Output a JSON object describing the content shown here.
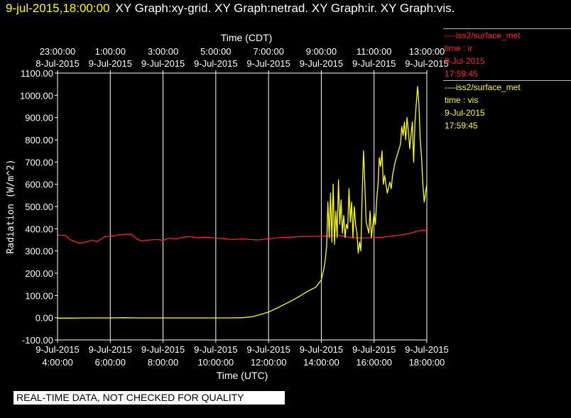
{
  "header": {
    "timestamp": "9-jul-2015,18:00:00",
    "graphs": "XY Graph:xy-grid.  XY Graph:netrad.  XY Graph:ir.  XY Graph:vis."
  },
  "legend": [
    {
      "dash": "----",
      "name": "iss2/surface_met",
      "var": "time : ir",
      "date": "9-Jul-2015",
      "time": "17:59:45",
      "color": "#ff2020"
    },
    {
      "dash": "----",
      "name": "iss2/surface_met",
      "var": "time : vis",
      "date": "9-Jul-2015",
      "time": "17:59:45",
      "color": "#ffff00"
    }
  ],
  "banner": "REAL-TIME DATA, NOT CHECKED FOR QUALITY",
  "colors": {
    "background": "#000000",
    "axis": "#ffffff",
    "grid": "#ffffff",
    "ir": "#ff2020",
    "vis": "#ffff00"
  },
  "chart_data": {
    "type": "line",
    "ylabel": "Radiation (W/m^2)",
    "xlabel": "Time (UTC)",
    "x2label": "Time (CDT)",
    "ylim": [
      -100,
      1100
    ],
    "yticks": [
      "-100.00",
      "0.00",
      "100.00",
      "200.00",
      "300.00",
      "400.00",
      "500.00",
      "600.00",
      "700.00",
      "800.00",
      "900.00",
      "1000.00",
      "1100.00"
    ],
    "xlim_hours_utc": [
      4,
      18
    ],
    "xticks": [
      {
        "h": 4,
        "date": "9-Jul-2015",
        "time": "4:00:00"
      },
      {
        "h": 6,
        "date": "9-Jul-2015",
        "time": "6:00:00"
      },
      {
        "h": 8,
        "date": "9-Jul-2015",
        "time": "8:00:00"
      },
      {
        "h": 10,
        "date": "9-Jul-2015",
        "time": "10:00:00"
      },
      {
        "h": 12,
        "date": "9-Jul-2015",
        "time": "12:00:00"
      },
      {
        "h": 14,
        "date": "9-Jul-2015",
        "time": "14:00:00"
      },
      {
        "h": 16,
        "date": "9-Jul-2015",
        "time": "16:00:00"
      },
      {
        "h": 18,
        "date": "9-Jul-2015",
        "time": "18:00:00"
      }
    ],
    "xticks_top": [
      {
        "h": 4,
        "time": "23:00:00",
        "date": "8-Jul-2015"
      },
      {
        "h": 6,
        "time": "1:00:00",
        "date": "9-Jul-2015"
      },
      {
        "h": 8,
        "time": "3:00:00",
        "date": "9-Jul-2015"
      },
      {
        "h": 10,
        "time": "5:00:00",
        "date": "9-Jul-2015"
      },
      {
        "h": 12,
        "time": "7:00:00",
        "date": "9-Jul-2015"
      },
      {
        "h": 14,
        "time": "9:00:00",
        "date": "9-Jul-2015"
      },
      {
        "h": 16,
        "time": "11:00:00",
        "date": "9-Jul-2015"
      },
      {
        "h": 18,
        "time": "13:00:00",
        "date": "9-Jul-2015"
      }
    ],
    "vgrid_hours": [
      6,
      8,
      10,
      12,
      14,
      16,
      18
    ],
    "series": [
      {
        "color": "#ff2020",
        "points": [
          [
            4,
            372
          ],
          [
            4.3,
            370
          ],
          [
            4.5,
            350
          ],
          [
            4.8,
            336
          ],
          [
            5,
            338
          ],
          [
            5.3,
            348
          ],
          [
            5.5,
            343
          ],
          [
            5.8,
            365
          ],
          [
            6,
            366
          ],
          [
            6.3,
            372
          ],
          [
            6.6,
            376
          ],
          [
            6.8,
            375
          ],
          [
            7,
            355
          ],
          [
            7.2,
            345
          ],
          [
            7.5,
            350
          ],
          [
            7.8,
            352
          ],
          [
            8,
            348
          ],
          [
            8.2,
            358
          ],
          [
            8.5,
            355
          ],
          [
            8.8,
            362
          ],
          [
            9,
            365
          ],
          [
            9.3,
            360
          ],
          [
            9.6,
            362
          ],
          [
            10,
            358
          ],
          [
            10.3,
            356
          ],
          [
            10.6,
            352
          ],
          [
            11,
            354
          ],
          [
            11.3,
            352
          ],
          [
            11.6,
            350
          ],
          [
            12,
            355
          ],
          [
            12.4,
            360
          ],
          [
            12.8,
            362
          ],
          [
            13.2,
            365
          ],
          [
            13.6,
            366
          ],
          [
            14,
            366
          ],
          [
            14.3,
            368
          ],
          [
            14.6,
            372
          ],
          [
            14.9,
            365
          ],
          [
            15.2,
            360
          ],
          [
            15.5,
            358
          ],
          [
            16,
            360
          ],
          [
            16.3,
            362
          ],
          [
            16.6,
            366
          ],
          [
            17,
            372
          ],
          [
            17.3,
            378
          ],
          [
            17.6,
            388
          ],
          [
            17.8,
            393
          ],
          [
            18,
            392
          ]
        ]
      },
      {
        "color": "#ffff00",
        "points": [
          [
            4,
            -2
          ],
          [
            4.5,
            -2
          ],
          [
            5,
            -1
          ],
          [
            5.5,
            -1
          ],
          [
            6,
            -1
          ],
          [
            6.5,
            0
          ],
          [
            7,
            -1
          ],
          [
            7.5,
            -1
          ],
          [
            8,
            -1
          ],
          [
            8.5,
            -1
          ],
          [
            9,
            -1
          ],
          [
            9.5,
            -1
          ],
          [
            10,
            -1
          ],
          [
            10.5,
            -1
          ],
          [
            11,
            0
          ],
          [
            11.4,
            5
          ],
          [
            11.7,
            15
          ],
          [
            12,
            25
          ],
          [
            12.3,
            42
          ],
          [
            12.6,
            60
          ],
          [
            12.9,
            78
          ],
          [
            13.2,
            98
          ],
          [
            13.5,
            120
          ],
          [
            13.8,
            138
          ],
          [
            14,
            170
          ],
          [
            14.1,
            220
          ],
          [
            14.15,
            260
          ],
          [
            14.2,
            320
          ],
          [
            14.25,
            520
          ],
          [
            14.3,
            360
          ],
          [
            14.35,
            560
          ],
          [
            14.4,
            340
          ],
          [
            14.45,
            600
          ],
          [
            14.5,
            330
          ],
          [
            14.55,
            480
          ],
          [
            14.6,
            360
          ],
          [
            14.65,
            620
          ],
          [
            14.7,
            420
          ],
          [
            14.75,
            530
          ],
          [
            14.8,
            380
          ],
          [
            14.85,
            460
          ],
          [
            14.9,
            360
          ],
          [
            14.95,
            420
          ],
          [
            15,
            400
          ],
          [
            15.05,
            580
          ],
          [
            15.1,
            430
          ],
          [
            15.15,
            520
          ],
          [
            15.2,
            360
          ],
          [
            15.25,
            500
          ],
          [
            15.3,
            420
          ],
          [
            15.35,
            380
          ],
          [
            15.4,
            290
          ],
          [
            15.45,
            340
          ],
          [
            15.5,
            300
          ],
          [
            15.55,
            560
          ],
          [
            15.6,
            750
          ],
          [
            15.65,
            600
          ],
          [
            15.7,
            430
          ],
          [
            15.8,
            380
          ],
          [
            15.85,
            480
          ],
          [
            15.9,
            360
          ],
          [
            16,
            470
          ],
          [
            16.05,
            420
          ],
          [
            16.1,
            530
          ],
          [
            16.15,
            600
          ],
          [
            16.2,
            720
          ],
          [
            16.25,
            680
          ],
          [
            16.3,
            750
          ],
          [
            16.35,
            600
          ],
          [
            16.4,
            640
          ],
          [
            16.5,
            560
          ],
          [
            16.6,
            610
          ],
          [
            16.65,
            580
          ],
          [
            16.7,
            640
          ],
          [
            16.8,
            700
          ],
          [
            16.9,
            740
          ],
          [
            17,
            780
          ],
          [
            17.05,
            860
          ],
          [
            17.1,
            820
          ],
          [
            17.15,
            880
          ],
          [
            17.2,
            800
          ],
          [
            17.25,
            900
          ],
          [
            17.3,
            840
          ],
          [
            17.35,
            760
          ],
          [
            17.4,
            820
          ],
          [
            17.45,
            880
          ],
          [
            17.5,
            700
          ],
          [
            17.55,
            880
          ],
          [
            17.6,
            960
          ],
          [
            17.65,
            1040
          ],
          [
            17.7,
            960
          ],
          [
            17.75,
            800
          ],
          [
            17.8,
            720
          ],
          [
            17.85,
            600
          ],
          [
            17.9,
            520
          ],
          [
            17.95,
            560
          ],
          [
            18,
            600
          ]
        ]
      }
    ]
  }
}
